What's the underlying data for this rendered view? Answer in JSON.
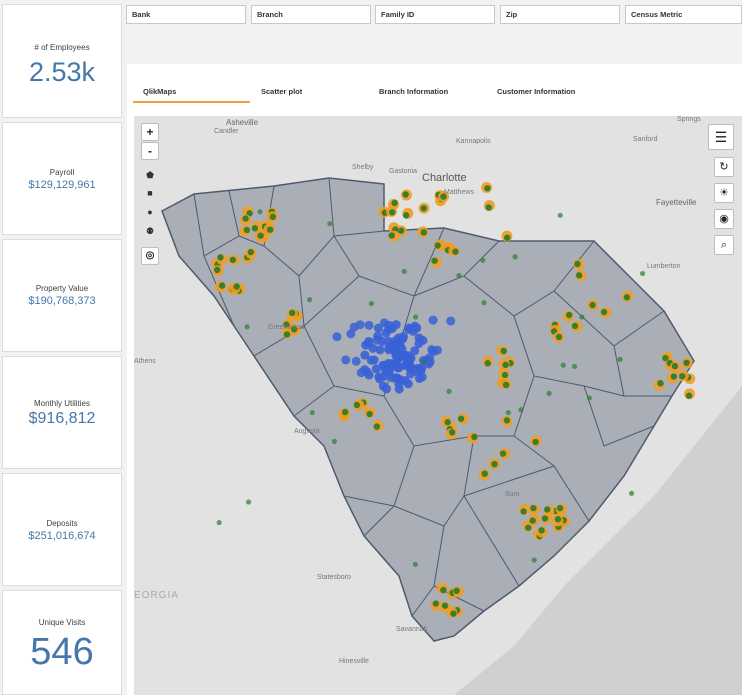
{
  "kpis": [
    {
      "label": "# of Employees",
      "value": "2.53k"
    },
    {
      "label": "Payroll",
      "value": "$129,129,961"
    },
    {
      "label": "Property Value",
      "value": "$190,768,373"
    },
    {
      "label": "Monthly Utilities",
      "value": "$916,812"
    },
    {
      "label": "Deposits",
      "value": "$251,016,674"
    },
    {
      "label": "Unique Visits",
      "value": "546"
    }
  ],
  "filters": [
    "Bank",
    "Branch",
    "Family ID",
    "Zip",
    "Census Metric"
  ],
  "tabs": [
    "QlikMaps",
    "Scatter plot",
    "Branch Information",
    "Customer Information"
  ],
  "active_tab": "QlikMaps",
  "map": {
    "zoom_in": "+",
    "zoom_out": "-",
    "tools": [
      "polygon-icon",
      "square-icon",
      "circle-icon",
      "pin-icon",
      "target-icon"
    ],
    "right_controls": [
      "layers-icon",
      "refresh-icon",
      "sun-icon",
      "locate-icon",
      "search-icon"
    ],
    "cities": {
      "asheville": "Asheville",
      "candler": "Candler",
      "shelby": "Shelby",
      "gastonia": "Gastonia",
      "kannapolis": "Kannapolis",
      "charlotte": "Charlotte",
      "matthews": "Matthews",
      "springs": "Springs",
      "sanford": "Sanford",
      "fayetteville": "Fayetteville",
      "lumberton": "Lumberton",
      "athens": "Athens",
      "greenwood": "Greenwood",
      "augusta": "Augusta",
      "statesboro": "Statesboro",
      "savannah": "Savannah",
      "hinesville": "Hinesville",
      "sumter": "Sum"
    },
    "state_label": "EORGIA",
    "colors": {
      "orange": "#f39c1f",
      "green": "#2e7d32",
      "blue": "#3a62d6",
      "region": "#a7adb8",
      "border": "#4f5a6e"
    }
  }
}
